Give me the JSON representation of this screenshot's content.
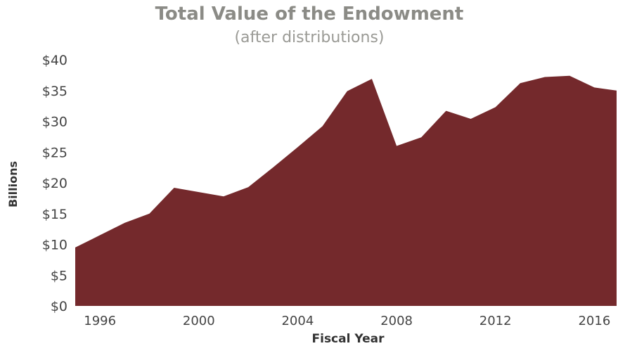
{
  "chart_data": {
    "type": "area",
    "title": "Total Value of the Endowment",
    "subtitle": "(after distributions)",
    "xlabel": "Fiscal Year",
    "ylabel": "Billions",
    "xlim": [
      1995,
      2016.9
    ],
    "ylim": [
      0,
      40
    ],
    "x_ticks": [
      1996,
      2000,
      2004,
      2008,
      2012,
      2016
    ],
    "x_tick_labels": [
      "1996",
      "2000",
      "2004",
      "2008",
      "2012",
      "2016"
    ],
    "y_ticks": [
      0,
      5,
      10,
      15,
      20,
      25,
      30,
      35,
      40
    ],
    "y_tick_labels": [
      "$0",
      "$5",
      "$10",
      "$15",
      "$20",
      "$25",
      "$30",
      "$35",
      "$40"
    ],
    "grid": false,
    "legend": "none",
    "series": [
      {
        "color": "#74292c",
        "x": [
          1995,
          1996,
          1997,
          1998,
          1999,
          2000,
          2001,
          2002,
          2003,
          2004,
          2005,
          2006,
          2007,
          2008,
          2009,
          2010,
          2011,
          2012,
          2013,
          2014,
          2015,
          2016,
          2016.9
        ],
        "y": [
          9.5,
          11.5,
          13.5,
          15.0,
          19.2,
          18.5,
          17.8,
          19.3,
          22.5,
          25.8,
          29.2,
          34.9,
          36.9,
          26.0,
          27.4,
          31.7,
          30.4,
          32.3,
          36.2,
          37.2,
          37.4,
          35.5,
          35.0
        ]
      }
    ]
  }
}
